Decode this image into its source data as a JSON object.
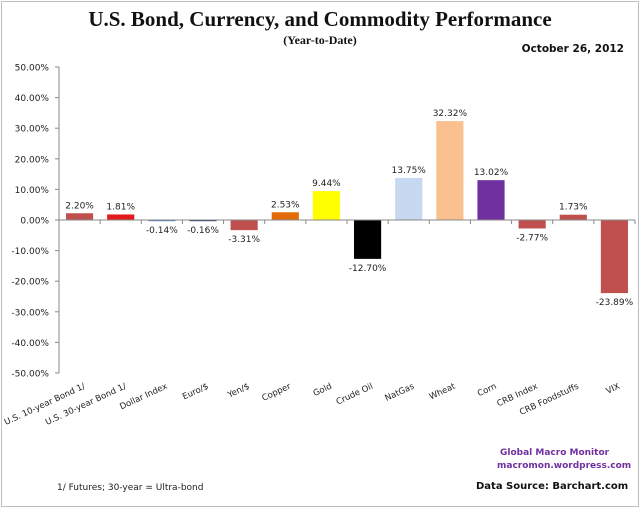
{
  "chart_data": {
    "type": "bar",
    "title": "U.S. Bond, Currency, and Commodity Performance",
    "subtitle": "(Year-to-Date)",
    "date": "October 26, 2012",
    "xlabel": "",
    "ylabel": "",
    "ylim": [
      -50,
      50
    ],
    "yticks": [
      50,
      40,
      30,
      20,
      10,
      0,
      -10,
      -20,
      -30,
      -40,
      -50
    ],
    "ytick_labels": [
      "50.00%",
      "40.00%",
      "30.00%",
      "20.00%",
      "10.00%",
      "0.00%",
      "-10.00%",
      "-20.00%",
      "-30.00%",
      "-40.00%",
      "-50.00%"
    ],
    "grid": false,
    "categories": [
      "U.S. 10-year Bond 1/",
      "U.S. 30-year Bond 1/",
      "Dollar Index",
      "Euro/$",
      "Yen/$",
      "Copper",
      "Gold",
      "Crude Oil",
      "NatGas",
      "Wheat",
      "Corn",
      "CRB Index",
      "CRB Foodstuffs",
      "VIX"
    ],
    "values": [
      2.2,
      1.81,
      -0.14,
      -0.16,
      -3.31,
      2.53,
      9.44,
      -12.7,
      13.75,
      32.32,
      13.02,
      -2.77,
      1.73,
      -23.89
    ],
    "data_labels": [
      "2.20%",
      "1.81%",
      "-0.14%",
      "-0.16%",
      "-3.31%",
      "2.53%",
      "9.44%",
      "-12.70%",
      "13.75%",
      "32.32%",
      "13.02%",
      "-2.77%",
      "1.73%",
      "-23.89%"
    ],
    "colors": [
      "#c0504d",
      "#e31a1c",
      "#4f81bd",
      "#1f3864",
      "#c0504d",
      "#e36c09",
      "#ffff00",
      "#000000",
      "#c6d9f1",
      "#fac090",
      "#7030a0",
      "#c0504d",
      "#c0504d",
      "#c0504d"
    ]
  },
  "annotations": {
    "footnote": "1/  Futures; 30-year = Ultra-bond",
    "credit_line1": "Global Macro Monitor",
    "credit_line2": "macromon.wordpress.com",
    "source": "Data Source:  Barchart.com"
  }
}
